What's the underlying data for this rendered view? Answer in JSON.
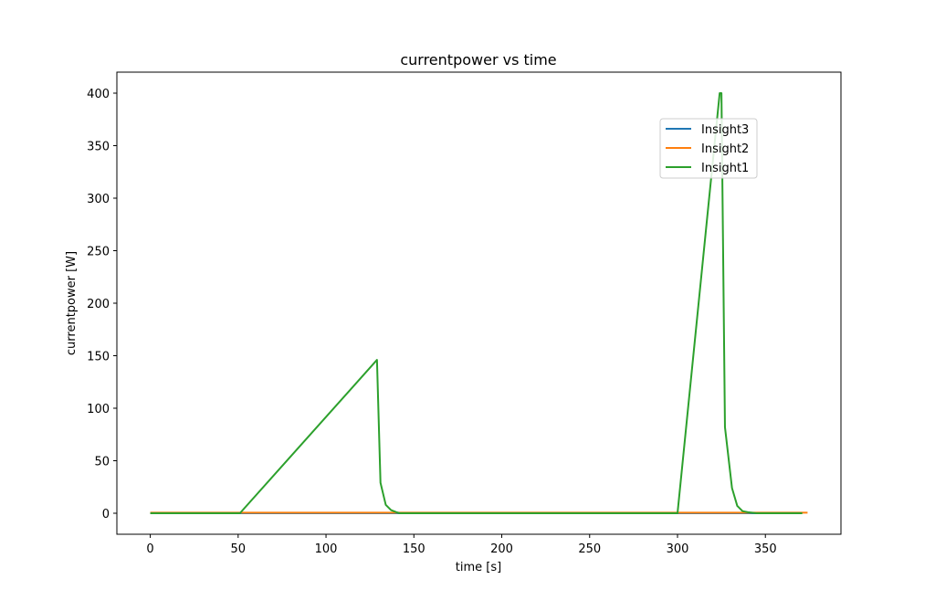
{
  "chart_data": {
    "type": "line",
    "title": "currentpower vs time",
    "xlabel": "time [s]",
    "ylabel": "currentpower [W]",
    "xlim": [
      -19,
      393
    ],
    "ylim": [
      -20,
      420
    ],
    "xticks": [
      0,
      50,
      100,
      150,
      200,
      250,
      300,
      350
    ],
    "yticks": [
      0,
      50,
      100,
      150,
      200,
      250,
      300,
      350,
      400
    ],
    "grid": false,
    "legend": "upper right (inset)",
    "series": [
      {
        "name": "Insight3",
        "color": "#1f77b4",
        "x": [
          0,
          370
        ],
        "y": [
          0,
          0
        ]
      },
      {
        "name": "Insight2",
        "color": "#ff7f0e",
        "x": [
          0,
          374
        ],
        "y": [
          0.5,
          0.5
        ]
      },
      {
        "name": "Insight1",
        "color": "#2ca02c",
        "x": [
          0,
          51,
          129,
          131,
          134,
          137,
          140,
          142,
          300,
          324,
          325,
          327,
          331,
          334,
          337,
          340,
          345,
          371
        ],
        "y": [
          0,
          0,
          146,
          29,
          8,
          3,
          1,
          0,
          0,
          400,
          400,
          82,
          24,
          7,
          2,
          1,
          0,
          0
        ]
      }
    ]
  }
}
